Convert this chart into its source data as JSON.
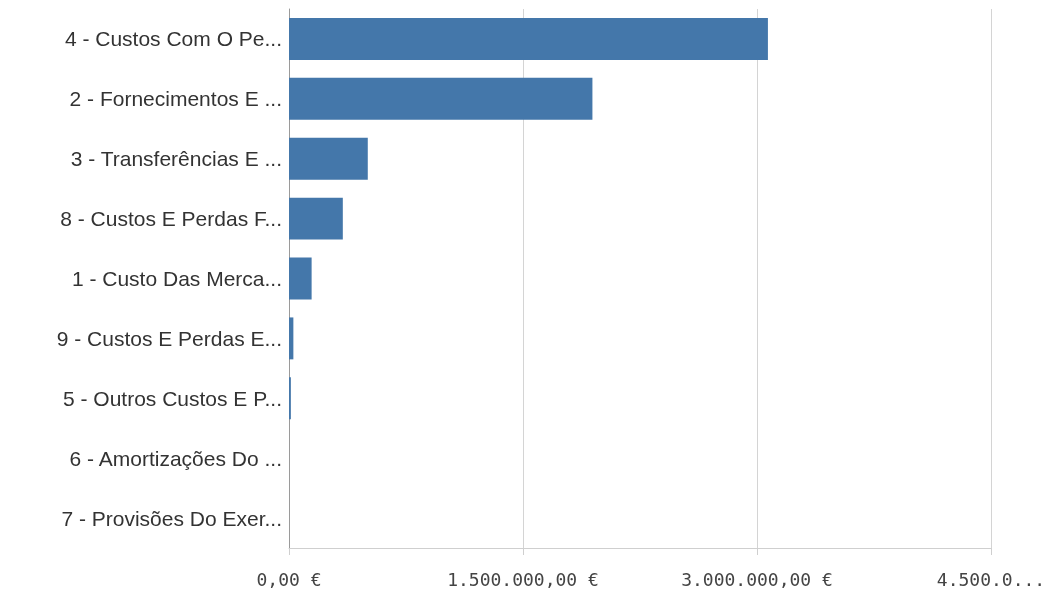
{
  "chart_data": {
    "type": "bar",
    "orientation": "horizontal",
    "categories": [
      "4 - Custos Com O Pe...",
      "2 - Fornecimentos E ...",
      "3 - Transferências E ...",
      "8 - Custos E Perdas F...",
      "1 - Custo Das Merca...",
      "9 - Custos E Perdas E...",
      "5 - Outros Custos E P...",
      "6 - Amortizações Do ...",
      "7 - Provisões Do Exer..."
    ],
    "values": [
      3070000,
      1945000,
      505000,
      345000,
      145000,
      28000,
      12000,
      0,
      0
    ],
    "color": "#4477aa",
    "xlim": [
      0,
      4500000
    ],
    "xticks": [
      {
        "value": 0,
        "label": "0,00 €"
      },
      {
        "value": 1500000,
        "label": "1.500.000,00 €"
      },
      {
        "value": 3000000,
        "label": "3.000.000,00 €"
      },
      {
        "value": 4500000,
        "label": "4.500.0..."
      }
    ],
    "grid": "x"
  }
}
